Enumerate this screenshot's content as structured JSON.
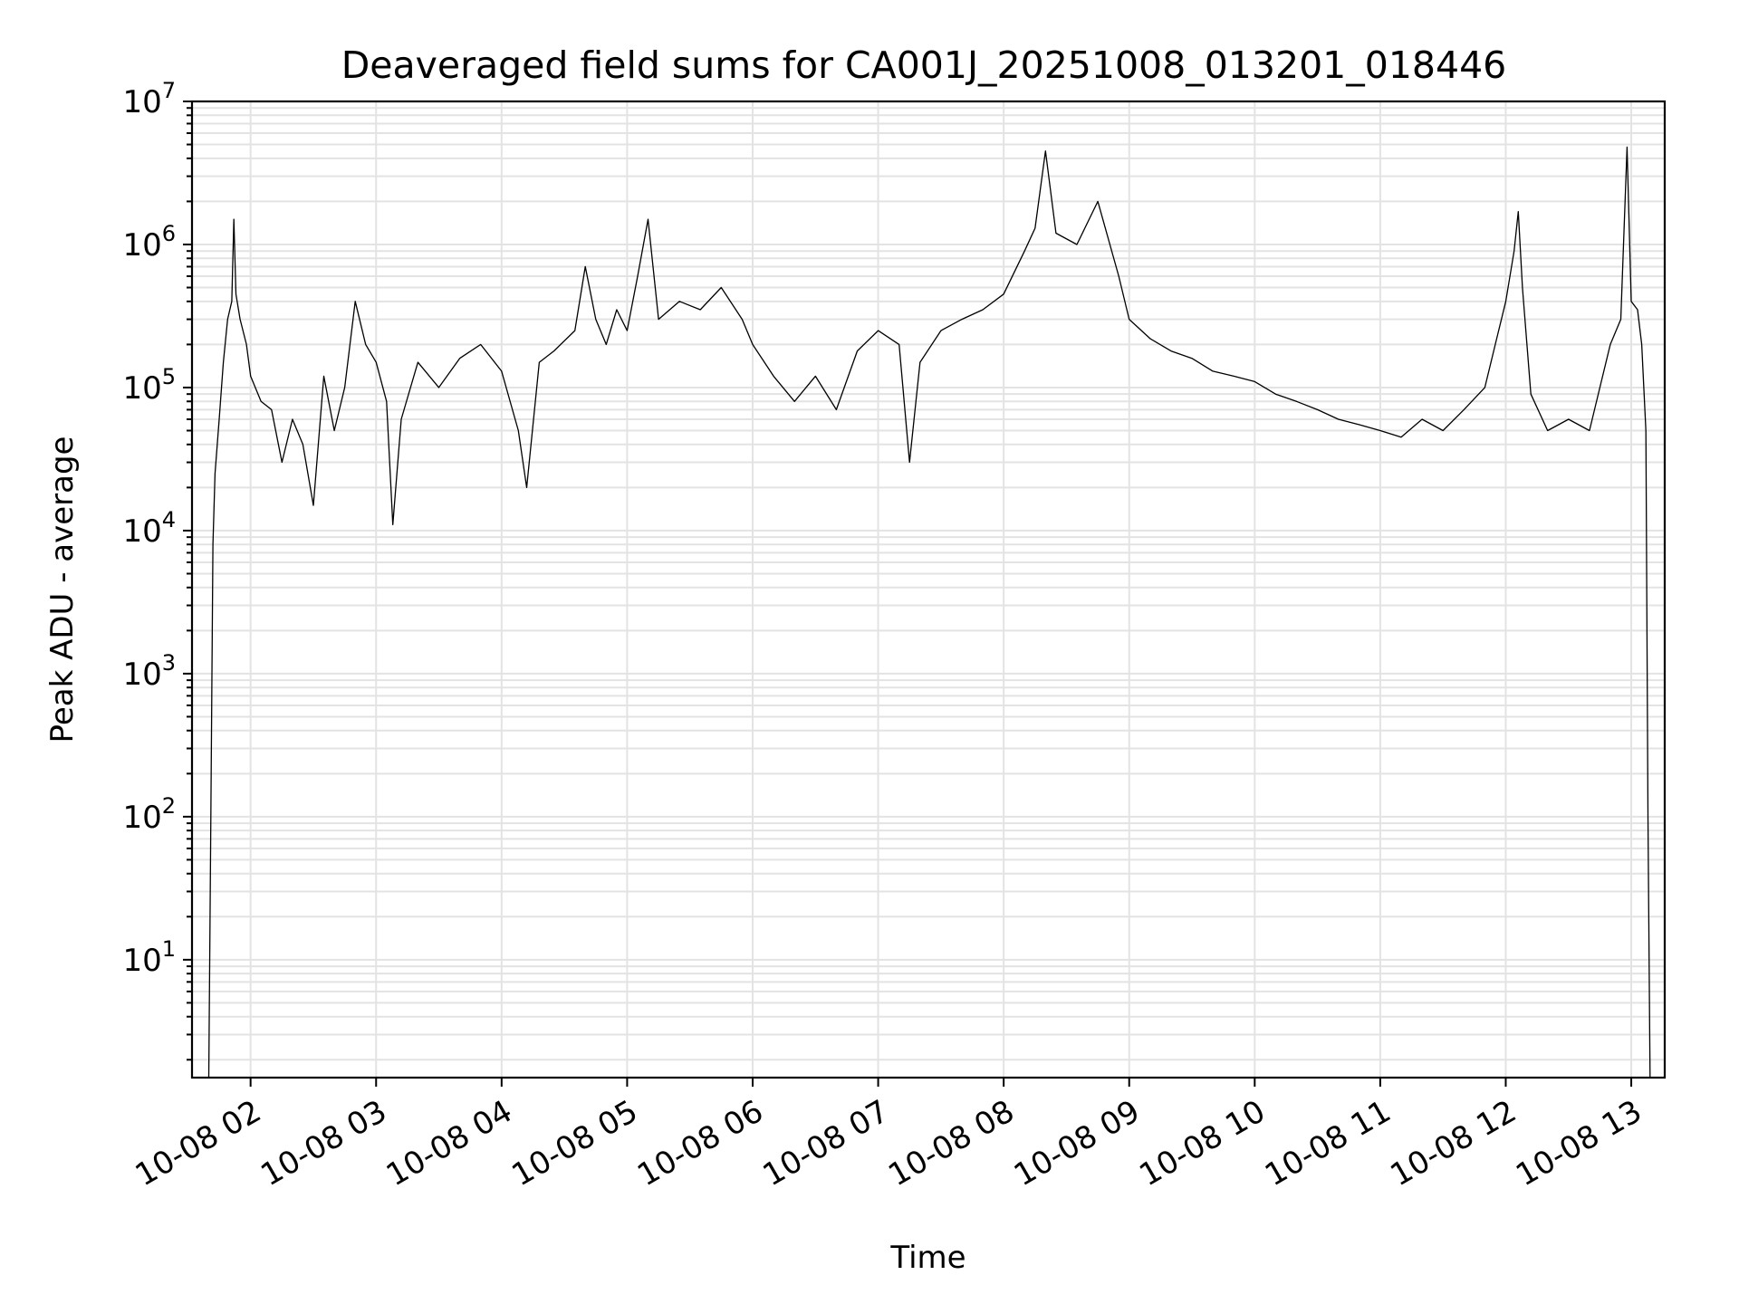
{
  "chart_data": {
    "type": "line",
    "title": "Deaveraged field sums for CA001J_20251008_013201_018446",
    "xlabel": "Time",
    "ylabel": "Peak ADU - average",
    "yscale": "log",
    "ylim": [
      1.5,
      10000000
    ],
    "xlim": [
      "2025-10-08 01:32",
      "2025-10-08 13:16"
    ],
    "grid": "on (major and minor)",
    "x_tick_labels": [
      "10-08 02",
      "10-08 03",
      "10-08 04",
      "10-08 05",
      "10-08 06",
      "10-08 07",
      "10-08 08",
      "10-08 09",
      "10-08 10",
      "10-08 11",
      "10-08 12",
      "10-08 13"
    ],
    "y_ticks": [
      {
        "base": "10",
        "exp": "1"
      },
      {
        "base": "10",
        "exp": "2"
      },
      {
        "base": "10",
        "exp": "3"
      },
      {
        "base": "10",
        "exp": "4"
      },
      {
        "base": "10",
        "exp": "5"
      },
      {
        "base": "10",
        "exp": "6"
      },
      {
        "base": "10",
        "exp": "7"
      }
    ],
    "series": [
      {
        "color": "#000000",
        "points": [
          [
            "2025-10-08 01:40",
            1.5
          ],
          [
            "2025-10-08 01:41",
            100
          ],
          [
            "2025-10-08 01:42",
            8000
          ],
          [
            "2025-10-08 01:43",
            25000
          ],
          [
            "2025-10-08 01:45",
            60000
          ],
          [
            "2025-10-08 01:47",
            150000
          ],
          [
            "2025-10-08 01:49",
            300000
          ],
          [
            "2025-10-08 01:51",
            400000
          ],
          [
            "2025-10-08 01:52",
            1500000
          ],
          [
            "2025-10-08 01:53",
            450000
          ],
          [
            "2025-10-08 01:55",
            300000
          ],
          [
            "2025-10-08 01:58",
            200000
          ],
          [
            "2025-10-08 02:00",
            120000
          ],
          [
            "2025-10-08 02:05",
            80000
          ],
          [
            "2025-10-08 02:10",
            70000
          ],
          [
            "2025-10-08 02:15",
            30000
          ],
          [
            "2025-10-08 02:20",
            60000
          ],
          [
            "2025-10-08 02:25",
            40000
          ],
          [
            "2025-10-08 02:30",
            15000
          ],
          [
            "2025-10-08 02:35",
            120000
          ],
          [
            "2025-10-08 02:40",
            50000
          ],
          [
            "2025-10-08 02:45",
            100000
          ],
          [
            "2025-10-08 02:50",
            400000
          ],
          [
            "2025-10-08 02:55",
            200000
          ],
          [
            "2025-10-08 03:00",
            150000
          ],
          [
            "2025-10-08 03:05",
            80000
          ],
          [
            "2025-10-08 03:08",
            11000
          ],
          [
            "2025-10-08 03:12",
            60000
          ],
          [
            "2025-10-08 03:20",
            150000
          ],
          [
            "2025-10-08 03:30",
            100000
          ],
          [
            "2025-10-08 03:40",
            160000
          ],
          [
            "2025-10-08 03:50",
            200000
          ],
          [
            "2025-10-08 04:00",
            130000
          ],
          [
            "2025-10-08 04:08",
            50000
          ],
          [
            "2025-10-08 04:12",
            20000
          ],
          [
            "2025-10-08 04:18",
            150000
          ],
          [
            "2025-10-08 04:25",
            180000
          ],
          [
            "2025-10-08 04:35",
            250000
          ],
          [
            "2025-10-08 04:40",
            700000
          ],
          [
            "2025-10-08 04:45",
            300000
          ],
          [
            "2025-10-08 04:50",
            200000
          ],
          [
            "2025-10-08 04:55",
            350000
          ],
          [
            "2025-10-08 05:00",
            250000
          ],
          [
            "2025-10-08 05:05",
            600000
          ],
          [
            "2025-10-08 05:10",
            1500000
          ],
          [
            "2025-10-08 05:15",
            300000
          ],
          [
            "2025-10-08 05:25",
            400000
          ],
          [
            "2025-10-08 05:35",
            350000
          ],
          [
            "2025-10-08 05:45",
            500000
          ],
          [
            "2025-10-08 05:55",
            300000
          ],
          [
            "2025-10-08 06:00",
            200000
          ],
          [
            "2025-10-08 06:10",
            120000
          ],
          [
            "2025-10-08 06:20",
            80000
          ],
          [
            "2025-10-08 06:30",
            120000
          ],
          [
            "2025-10-08 06:40",
            70000
          ],
          [
            "2025-10-08 06:50",
            180000
          ],
          [
            "2025-10-08 07:00",
            250000
          ],
          [
            "2025-10-08 07:10",
            200000
          ],
          [
            "2025-10-08 07:15",
            30000
          ],
          [
            "2025-10-08 07:20",
            150000
          ],
          [
            "2025-10-08 07:30",
            250000
          ],
          [
            "2025-10-08 07:40",
            300000
          ],
          [
            "2025-10-08 07:50",
            350000
          ],
          [
            "2025-10-08 08:00",
            450000
          ],
          [
            "2025-10-08 08:10",
            900000
          ],
          [
            "2025-10-08 08:15",
            1300000
          ],
          [
            "2025-10-08 08:20",
            4500000
          ],
          [
            "2025-10-08 08:25",
            1200000
          ],
          [
            "2025-10-08 08:35",
            1000000
          ],
          [
            "2025-10-08 08:45",
            2000000
          ],
          [
            "2025-10-08 08:55",
            600000
          ],
          [
            "2025-10-08 09:00",
            300000
          ],
          [
            "2025-10-08 09:10",
            220000
          ],
          [
            "2025-10-08 09:20",
            180000
          ],
          [
            "2025-10-08 09:30",
            160000
          ],
          [
            "2025-10-08 09:40",
            130000
          ],
          [
            "2025-10-08 09:50",
            120000
          ],
          [
            "2025-10-08 10:00",
            110000
          ],
          [
            "2025-10-08 10:10",
            90000
          ],
          [
            "2025-10-08 10:20",
            80000
          ],
          [
            "2025-10-08 10:30",
            70000
          ],
          [
            "2025-10-08 10:40",
            60000
          ],
          [
            "2025-10-08 10:50",
            55000
          ],
          [
            "2025-10-08 11:00",
            50000
          ],
          [
            "2025-10-08 11:10",
            45000
          ],
          [
            "2025-10-08 11:20",
            60000
          ],
          [
            "2025-10-08 11:30",
            50000
          ],
          [
            "2025-10-08 11:40",
            70000
          ],
          [
            "2025-10-08 11:50",
            100000
          ],
          [
            "2025-10-08 11:55",
            200000
          ],
          [
            "2025-10-08 12:00",
            400000
          ],
          [
            "2025-10-08 12:04",
            900000
          ],
          [
            "2025-10-08 12:06",
            1700000
          ],
          [
            "2025-10-08 12:08",
            500000
          ],
          [
            "2025-10-08 12:12",
            90000
          ],
          [
            "2025-10-08 12:20",
            50000
          ],
          [
            "2025-10-08 12:30",
            60000
          ],
          [
            "2025-10-08 12:40",
            50000
          ],
          [
            "2025-10-08 12:45",
            100000
          ],
          [
            "2025-10-08 12:50",
            200000
          ],
          [
            "2025-10-08 12:55",
            300000
          ],
          [
            "2025-10-08 12:58",
            4800000
          ],
          [
            "2025-10-08 13:00",
            400000
          ],
          [
            "2025-10-08 13:03",
            350000
          ],
          [
            "2025-10-08 13:05",
            200000
          ],
          [
            "2025-10-08 13:07",
            50000
          ],
          [
            "2025-10-08 13:08",
            100
          ],
          [
            "2025-10-08 13:09",
            1.5
          ]
        ]
      }
    ]
  }
}
